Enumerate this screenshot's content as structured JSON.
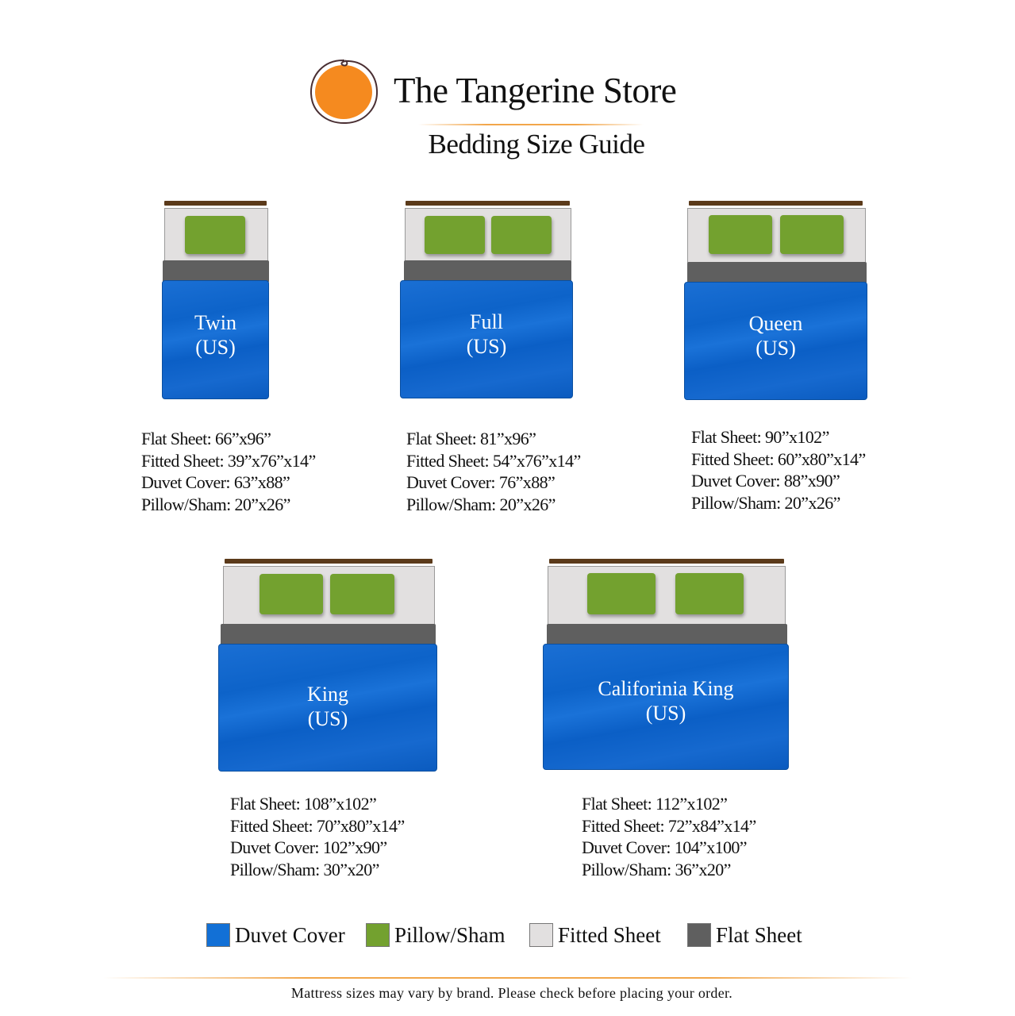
{
  "brand": {
    "name": "The Tangerine Store",
    "logo_icon": "tangerine-circle-logo-icon",
    "logo_color": "#f58a1f"
  },
  "subtitle": "Bedding Size Guide",
  "beds": [
    {
      "name": "Twin",
      "region": "(US)",
      "pillows": 1,
      "specs": [
        "Flat Sheet: 66”x96”",
        "Fitted Sheet: 39”x76”x14”",
        "Duvet Cover: 63”x88”",
        "Pillow/Sham: 20”x26”"
      ]
    },
    {
      "name": "Full",
      "region": "(US)",
      "pillows": 2,
      "specs": [
        "Flat Sheet: 81”x96”",
        "Fitted Sheet: 54”x76”x14”",
        "Duvet Cover: 76”x88”",
        "Pillow/Sham: 20”x26”"
      ]
    },
    {
      "name": "Queen",
      "region": "(US)",
      "pillows": 2,
      "specs": [
        "Flat Sheet: 90”x102”",
        "Fitted Sheet: 60”x80”x14”",
        "Duvet Cover: 88”x90”",
        "Pillow/Sham: 20”x26”"
      ]
    },
    {
      "name": "King",
      "region": "(US)",
      "pillows": 2,
      "specs": [
        "Flat Sheet: 108”x102”",
        "Fitted Sheet: 70”x80”x14”",
        "Duvet Cover: 102”x90”",
        "Pillow/Sham: 30”x20”"
      ]
    },
    {
      "name": "Califorinia King",
      "region": "(US)",
      "pillows": 2,
      "specs": [
        "Flat Sheet: 112”x102”",
        "Fitted Sheet: 72”x84”x14”",
        "Duvet Cover: 104”x100”",
        "Pillow/Sham: 36”x20”"
      ]
    }
  ],
  "legend": [
    {
      "label": "Duvet Cover",
      "color": "#1270d6"
    },
    {
      "label": "Pillow/Sham",
      "color": "#73a12f"
    },
    {
      "label": "Fitted Sheet",
      "color": "#e2e0e0"
    },
    {
      "label": "Flat Sheet",
      "color": "#5f5f5f"
    }
  ],
  "footer": "Mattress sizes may vary by brand. Please check before placing your order."
}
